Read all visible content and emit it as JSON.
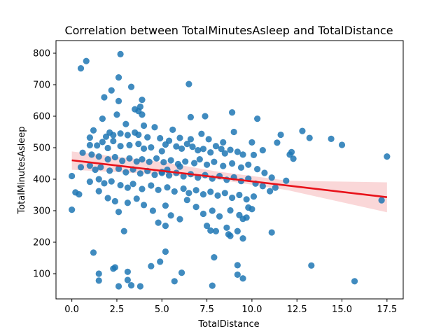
{
  "chart_data": {
    "type": "scatter",
    "title": "Correlation between TotalMinutesAsleep and TotalDistance",
    "xlabel": "TotalDistance",
    "ylabel": "TotalMinutesAsleep",
    "xlim": [
      -0.88,
      18.4
    ],
    "ylim": [
      20,
      840
    ],
    "xticks": [
      0.0,
      2.5,
      5.0,
      7.5,
      10.0,
      12.5,
      15.0,
      17.5
    ],
    "xtick_labels": [
      "0.0",
      "2.5",
      "5.0",
      "7.5",
      "10.0",
      "12.5",
      "15.0",
      "17.5"
    ],
    "yticks": [
      100,
      200,
      300,
      400,
      500,
      600,
      700,
      800
    ],
    "ytick_labels": [
      "100",
      "200",
      "300",
      "400",
      "500",
      "600",
      "700",
      "800"
    ],
    "grid": false,
    "point_color": "#1f77b4",
    "regression": {
      "color": "#e8121a",
      "band_color": "#f4a6a8",
      "line": [
        [
          0.0,
          460
        ],
        [
          17.5,
          343
        ]
      ],
      "ci_lower": [
        [
          0.0,
          430
        ],
        [
          5.0,
          415
        ],
        [
          8.0,
          400
        ],
        [
          12.0,
          365
        ],
        [
          17.5,
          295
        ]
      ],
      "ci_upper": [
        [
          0.0,
          488
        ],
        [
          5.0,
          455
        ],
        [
          8.0,
          425
        ],
        [
          12.0,
          395
        ],
        [
          17.5,
          390
        ]
      ]
    },
    "points": [
      [
        2.7,
        797
      ],
      [
        0.8,
        775
      ],
      [
        0.5,
        752
      ],
      [
        2.6,
        723
      ],
      [
        6.5,
        702
      ],
      [
        3.3,
        693
      ],
      [
        2.2,
        682
      ],
      [
        3.9,
        652
      ],
      [
        1.8,
        660
      ],
      [
        2.6,
        648
      ],
      [
        3.5,
        622
      ],
      [
        3.8,
        630
      ],
      [
        3.7,
        616
      ],
      [
        2.5,
        605
      ],
      [
        3.9,
        605
      ],
      [
        6.6,
        597
      ],
      [
        7.4,
        600
      ],
      [
        8.9,
        612
      ],
      [
        10.3,
        592
      ],
      [
        1.7,
        592
      ],
      [
        3.0,
        575
      ],
      [
        4.0,
        570
      ],
      [
        4.6,
        565
      ],
      [
        1.2,
        555
      ],
      [
        2.1,
        548
      ],
      [
        1.0,
        532
      ],
      [
        1.9,
        535
      ],
      [
        2.3,
        540
      ],
      [
        2.7,
        545
      ],
      [
        3.1,
        540
      ],
      [
        3.5,
        548
      ],
      [
        3.7,
        541
      ],
      [
        4.2,
        533
      ],
      [
        4.9,
        530
      ],
      [
        5.4,
        522
      ],
      [
        5.6,
        557
      ],
      [
        6.0,
        531
      ],
      [
        6.6,
        527
      ],
      [
        7.2,
        544
      ],
      [
        7.6,
        527
      ],
      [
        8.4,
        517
      ],
      [
        9.0,
        550
      ],
      [
        10.0,
        517
      ],
      [
        11.6,
        541
      ],
      [
        12.8,
        553
      ],
      [
        13.2,
        531
      ],
      [
        14.4,
        528
      ],
      [
        15.0,
        509
      ],
      [
        17.5,
        472
      ],
      [
        1.0,
        508
      ],
      [
        1.4,
        507
      ],
      [
        1.7,
        518
      ],
      [
        2.0,
        499
      ],
      [
        2.3,
        521
      ],
      [
        2.7,
        505
      ],
      [
        3.2,
        508
      ],
      [
        3.7,
        512
      ],
      [
        4.0,
        497
      ],
      [
        4.4,
        501
      ],
      [
        5.0,
        489
      ],
      [
        5.2,
        510
      ],
      [
        5.8,
        504
      ],
      [
        6.1,
        497
      ],
      [
        6.4,
        512
      ],
      [
        6.7,
        503
      ],
      [
        7.0,
        492
      ],
      [
        7.3,
        496
      ],
      [
        7.7,
        485
      ],
      [
        8.0,
        505
      ],
      [
        8.3,
        496
      ],
      [
        8.5,
        482
      ],
      [
        8.8,
        493
      ],
      [
        9.2,
        487
      ],
      [
        9.5,
        478
      ],
      [
        10.1,
        477
      ],
      [
        10.6,
        492
      ],
      [
        11.4,
        516
      ],
      [
        12.2,
        486
      ],
      [
        12.3,
        465
      ],
      [
        0.6,
        484
      ],
      [
        1.1,
        478
      ],
      [
        1.5,
        472
      ],
      [
        2.0,
        463
      ],
      [
        2.4,
        470
      ],
      [
        2.8,
        458
      ],
      [
        3.2,
        466
      ],
      [
        3.6,
        456
      ],
      [
        3.9,
        463
      ],
      [
        4.3,
        455
      ],
      [
        4.7,
        466
      ],
      [
        5.1,
        454
      ],
      [
        5.5,
        460
      ],
      [
        5.9,
        448
      ],
      [
        6.3,
        456
      ],
      [
        6.8,
        451
      ],
      [
        7.1,
        463
      ],
      [
        7.5,
        446
      ],
      [
        7.9,
        455
      ],
      [
        8.4,
        442
      ],
      [
        8.9,
        450
      ],
      [
        9.4,
        437
      ],
      [
        9.8,
        446
      ],
      [
        10.3,
        432
      ],
      [
        10.7,
        420
      ],
      [
        11.1,
        405
      ],
      [
        11.9,
        395
      ],
      [
        12.1,
        478
      ],
      [
        0.5,
        438
      ],
      [
        1.0,
        443
      ],
      [
        1.3,
        430
      ],
      [
        1.6,
        438
      ],
      [
        2.1,
        427
      ],
      [
        2.6,
        433
      ],
      [
        3.0,
        422
      ],
      [
        3.4,
        431
      ],
      [
        3.8,
        418
      ],
      [
        4.2,
        426
      ],
      [
        4.6,
        414
      ],
      [
        5.0,
        423
      ],
      [
        5.4,
        412
      ],
      [
        5.8,
        420
      ],
      [
        6.2,
        409
      ],
      [
        6.6,
        416
      ],
      [
        7.0,
        405
      ],
      [
        7.4,
        413
      ],
      [
        7.8,
        402
      ],
      [
        8.2,
        410
      ],
      [
        8.6,
        398
      ],
      [
        9.0,
        406
      ],
      [
        9.4,
        394
      ],
      [
        9.8,
        402
      ],
      [
        10.2,
        386
      ],
      [
        10.6,
        378
      ],
      [
        11.0,
        362
      ],
      [
        11.3,
        373
      ],
      [
        0.0,
        410
      ],
      [
        0.2,
        358
      ],
      [
        0.4,
        352
      ],
      [
        1.0,
        392
      ],
      [
        1.5,
        400
      ],
      [
        1.8,
        387
      ],
      [
        2.2,
        393
      ],
      [
        2.7,
        381
      ],
      [
        3.1,
        373
      ],
      [
        3.4,
        385
      ],
      [
        3.9,
        369
      ],
      [
        4.4,
        380
      ],
      [
        4.8,
        366
      ],
      [
        5.3,
        374
      ],
      [
        5.7,
        361
      ],
      [
        6.2,
        370
      ],
      [
        6.5,
        356
      ],
      [
        6.9,
        365
      ],
      [
        7.3,
        352
      ],
      [
        7.7,
        360
      ],
      [
        8.1,
        348
      ],
      [
        8.5,
        356
      ],
      [
        8.9,
        341
      ],
      [
        9.3,
        350
      ],
      [
        9.7,
        336
      ],
      [
        10.1,
        345
      ],
      [
        0.0,
        303
      ],
      [
        1.5,
        362
      ],
      [
        2.0,
        340
      ],
      [
        2.4,
        330
      ],
      [
        2.6,
        296
      ],
      [
        3.1,
        325
      ],
      [
        3.6,
        338
      ],
      [
        4.0,
        318
      ],
      [
        4.5,
        300
      ],
      [
        5.2,
        316
      ],
      [
        5.5,
        285
      ],
      [
        6.0,
        273
      ],
      [
        6.4,
        334
      ],
      [
        6.9,
        312
      ],
      [
        7.3,
        290
      ],
      [
        7.8,
        300
      ],
      [
        8.2,
        282
      ],
      [
        8.8,
        301
      ],
      [
        9.3,
        286
      ],
      [
        9.8,
        310
      ],
      [
        10.0,
        305
      ],
      [
        9.5,
        274
      ],
      [
        9.7,
        278
      ],
      [
        4.8,
        262
      ],
      [
        5.2,
        252
      ],
      [
        7.5,
        252
      ],
      [
        7.7,
        237
      ],
      [
        8.0,
        235
      ],
      [
        8.6,
        246
      ],
      [
        8.7,
        225
      ],
      [
        9.2,
        235
      ],
      [
        9.5,
        212
      ],
      [
        11.1,
        231
      ],
      [
        2.9,
        235
      ],
      [
        1.2,
        167
      ],
      [
        5.2,
        170
      ],
      [
        7.9,
        152
      ],
      [
        9.2,
        127
      ],
      [
        13.3,
        126
      ],
      [
        4.9,
        138
      ],
      [
        4.4,
        124
      ],
      [
        2.4,
        120
      ],
      [
        2.3,
        116
      ],
      [
        1.5,
        100
      ],
      [
        3.1,
        106
      ],
      [
        6.1,
        103
      ],
      [
        9.2,
        97
      ],
      [
        1.5,
        78
      ],
      [
        3.1,
        80
      ],
      [
        5.7,
        76
      ],
      [
        9.5,
        85
      ],
      [
        15.7,
        76
      ],
      [
        2.6,
        60
      ],
      [
        3.3,
        63
      ],
      [
        3.8,
        60
      ],
      [
        7.8,
        62
      ],
      [
        17.2,
        333
      ],
      [
        8.8,
        220
      ],
      [
        5.0,
        420
      ],
      [
        5.3,
        430
      ],
      [
        6.0,
        440
      ]
    ]
  }
}
